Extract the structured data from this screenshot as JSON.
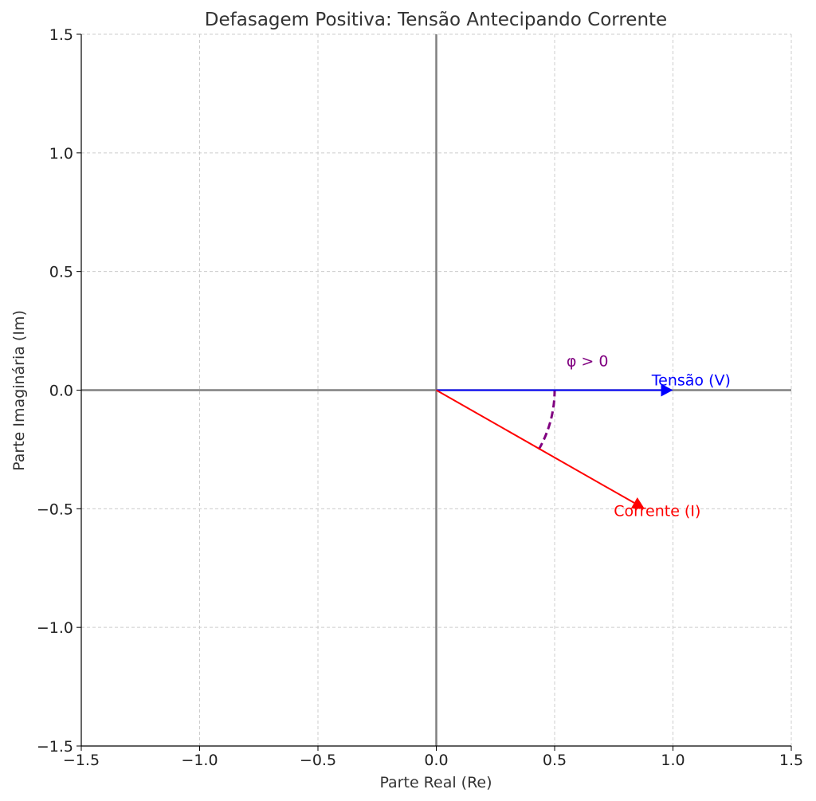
{
  "chart_data": {
    "type": "line",
    "title": "Defasagem Positiva: Tensão Antecipando Corrente",
    "xlabel": "Parte Real (Re)",
    "ylabel": "Parte Imaginária (Im)",
    "xlim": [
      -1.5,
      1.5
    ],
    "ylim": [
      -1.5,
      1.5
    ],
    "xticks": [
      -1.5,
      -1.0,
      -0.5,
      0.0,
      0.5,
      1.0,
      1.5
    ],
    "yticks": [
      -1.5,
      -1.0,
      -0.5,
      0.0,
      0.5,
      1.0,
      1.5
    ],
    "xtick_labels": [
      "−1.5",
      "−1.0",
      "−0.5",
      "0.0",
      "0.5",
      "1.0",
      "1.5"
    ],
    "ytick_labels": [
      "−1.5",
      "−1.0",
      "−0.5",
      "0.0",
      "0.5",
      "1.0",
      "1.5"
    ],
    "grid": true,
    "vectors": [
      {
        "label": "Tensão (V)",
        "start": [
          0,
          0
        ],
        "end": [
          1.0,
          0.0
        ],
        "color": "#0000ff",
        "label_pos": [
          0.91,
          0.02
        ]
      },
      {
        "label": "Corrente (I)",
        "start": [
          0,
          0
        ],
        "end": [
          0.88,
          -0.5
        ],
        "color": "#ff0000",
        "label_pos": [
          0.75,
          -0.53
        ]
      }
    ],
    "angle_arc": {
      "label": "φ > 0",
      "radius": 0.5,
      "from_deg": -30,
      "to_deg": 0,
      "color": "#800080",
      "label_pos": [
        0.55,
        0.1
      ]
    }
  }
}
